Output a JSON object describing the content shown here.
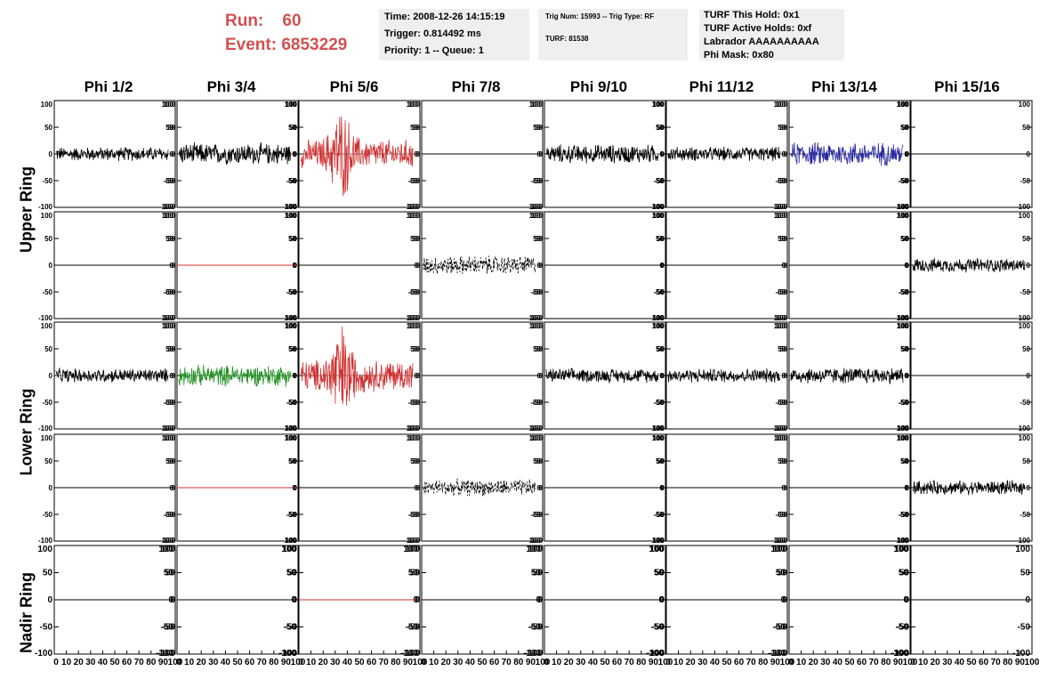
{
  "header": {
    "run_label": "Run:",
    "run_value": "60",
    "event_label": "Event:",
    "event_value": "6853229",
    "info_box_1": {
      "time": "Time: 2008-12-26 14:15:19",
      "trigger": "Trigger: 0.814492 ms",
      "priority": "Priority: 1 -- Queue: 1"
    },
    "info_box_2": {
      "trig": "Trig Num: 15993 -- Trig Type: RF",
      "turf": "TURF: 81538"
    },
    "info_box_3": {
      "this_hold": "TURF This Hold: 0x1",
      "active_holds": "TURF Active Holds: 0xf",
      "labrador": "Labrador AAAAAAAAAA",
      "phi_mask": "Phi Mask: 0x80"
    },
    "colors": {
      "run_text": "#d35050",
      "box_bg": "#efefef"
    }
  },
  "columns": [
    "Phi 1/2",
    "Phi 3/4",
    "Phi 5/6",
    "Phi 7/8",
    "Phi 9/10",
    "Phi 11/12",
    "Phi 13/14",
    "Phi 15/16"
  ],
  "ring_labels": [
    "Upper Ring",
    "Lower Ring",
    "Nadir Ring"
  ],
  "axes": {
    "y_ticks": [
      "100",
      "50",
      "0",
      "-50",
      "-100"
    ],
    "x_tick_label": "0 10 20 30 40 50 60 70 80 90 100",
    "ylim": [
      -100,
      100
    ],
    "xlim": [
      0,
      100
    ]
  },
  "trace_colors": {
    "black": "#000000",
    "red": "#d03030",
    "green": "#209020",
    "blue": "#2a2aa0"
  },
  "traces": [
    [
      "black:30",
      "black:45",
      "red:90",
      "flat",
      "black:40",
      "black:30",
      "blue:50",
      "flat"
    ],
    [
      "flat",
      "flatred",
      "flat",
      "dash:40",
      "flat",
      "flat",
      "flat",
      "black:30"
    ],
    [
      "black:30",
      "green:45",
      "red:100",
      "flat",
      "black:30",
      "black:30",
      "black:35",
      "flat"
    ],
    [
      "flat",
      "flatred",
      "flat",
      "dash:35",
      "flat",
      "flat",
      "flat",
      "black:30"
    ],
    [
      "flat",
      "flat",
      "flatred",
      "flat",
      "flat",
      "flat",
      "flat",
      "flat"
    ]
  ]
}
